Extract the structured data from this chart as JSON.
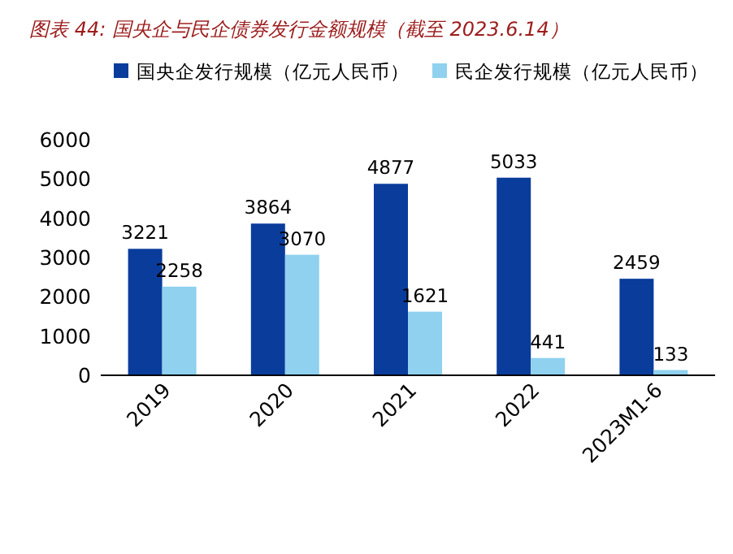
{
  "chart_data": {
    "type": "bar",
    "title": "图表 44:  国央企与民企债券发行金额规模（截至 2023.6.14）",
    "categories": [
      "2019",
      "2020",
      "2021",
      "2022",
      "2023M1-6"
    ],
    "series": [
      {
        "name": "国央企发行规模（亿元人民币）",
        "color": "#0a3c9c",
        "values": [
          3221,
          3864,
          4877,
          5033,
          2459
        ]
      },
      {
        "name": "民企发行规模（亿元人民币）",
        "color": "#8fd1ef",
        "values": [
          2258,
          3070,
          1621,
          441,
          133
        ]
      }
    ],
    "ylim": [
      0,
      6000
    ],
    "yticks": [
      0,
      1000,
      2000,
      3000,
      4000,
      5000,
      6000
    ],
    "legend": "top",
    "data_labels": true
  }
}
